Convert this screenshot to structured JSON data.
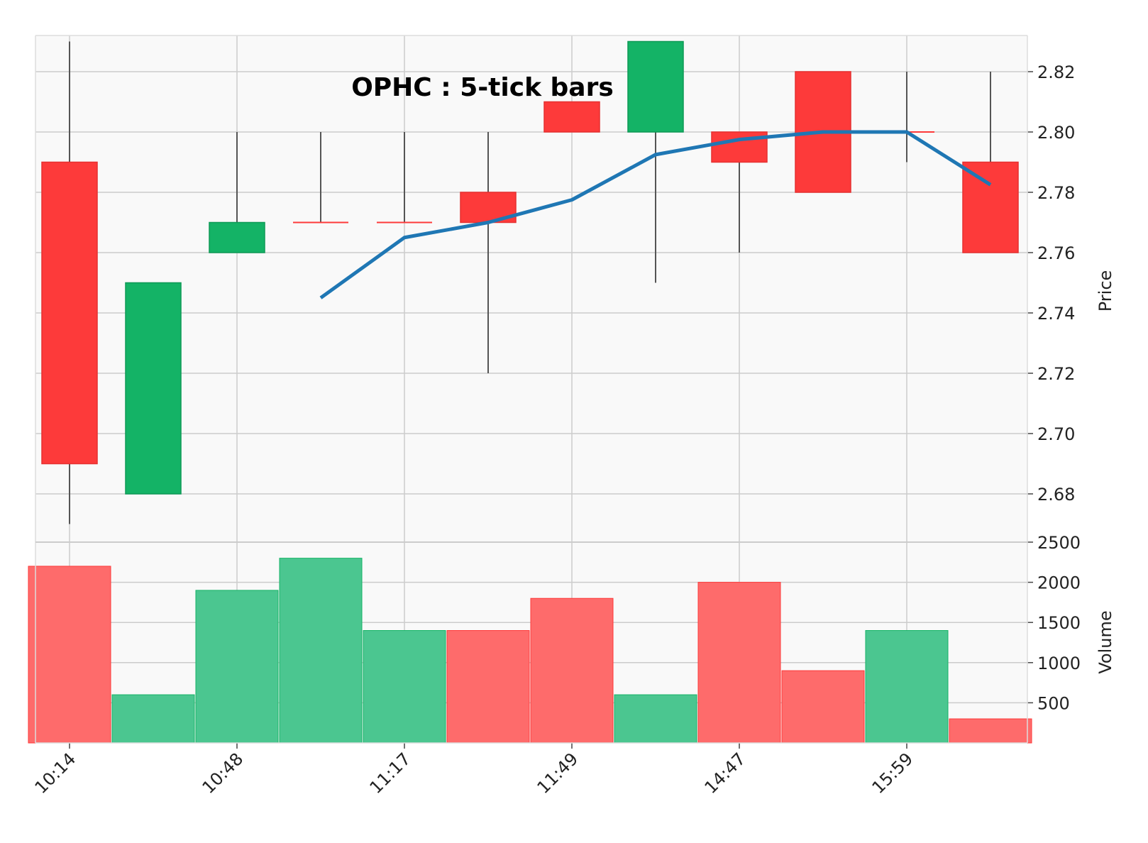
{
  "chart_data": {
    "type": "candlestick",
    "title": "OPHC : 5-tick bars",
    "ylabel": "Price",
    "volume_label": "Volume",
    "x_tick_labels": [
      "10:14",
      "10:48",
      "11:17",
      "11:49",
      "14:47",
      "15:59"
    ],
    "x_tick_bar_index": [
      0,
      2,
      4,
      6,
      8,
      10
    ],
    "price_ylim": [
      2.664,
      2.832
    ],
    "price_ticks": [
      "2.68",
      "2.70",
      "2.72",
      "2.74",
      "2.76",
      "2.78",
      "2.80",
      "2.82"
    ],
    "volume_ylim": [
      0,
      2500
    ],
    "volume_ticks": [
      "500",
      "1000",
      "1500",
      "2000",
      "2500"
    ],
    "grid": true,
    "bars": [
      {
        "open": 2.79,
        "high": 2.83,
        "low": 2.67,
        "close": 2.69,
        "volume": 2200
      },
      {
        "open": 2.68,
        "high": 2.75,
        "low": 2.68,
        "close": 2.75,
        "volume": 600
      },
      {
        "open": 2.76,
        "high": 2.8,
        "low": 2.76,
        "close": 2.77,
        "volume": 1900
      },
      {
        "open": 2.77,
        "high": 2.8,
        "low": 2.77,
        "close": 2.77,
        "volume": 2300
      },
      {
        "open": 2.77,
        "high": 2.8,
        "low": 2.77,
        "close": 2.77,
        "volume": 1400
      },
      {
        "open": 2.78,
        "high": 2.8,
        "low": 2.72,
        "close": 2.77,
        "volume": 1400
      },
      {
        "open": 2.81,
        "high": 2.81,
        "low": 2.8,
        "close": 2.8,
        "volume": 1800
      },
      {
        "open": 2.8,
        "high": 2.83,
        "low": 2.75,
        "close": 2.83,
        "volume": 600
      },
      {
        "open": 2.8,
        "high": 2.8,
        "low": 2.76,
        "close": 2.79,
        "volume": 2000
      },
      {
        "open": 2.82,
        "high": 2.82,
        "low": 2.78,
        "close": 2.78,
        "volume": 900
      },
      {
        "open": 2.8,
        "high": 2.82,
        "low": 2.79,
        "close": 2.8,
        "volume": 1400
      },
      {
        "open": 2.79,
        "high": 2.82,
        "low": 2.76,
        "close": 2.76,
        "volume": 300
      }
    ],
    "moving_average": {
      "start_index": 3,
      "values": [
        2.745,
        2.765,
        2.77,
        2.7775,
        2.7925,
        2.7975,
        2.8,
        2.8,
        2.7825
      ]
    },
    "colors": {
      "up": "#14b366",
      "down": "#fd3a3a",
      "up_volume": "#4bc690",
      "down_volume": "#fe6b6b",
      "moving_average": "#1f77b4",
      "wick": "#555555",
      "panel_bg": "#f9f9f9",
      "grid": "#cccccc"
    }
  }
}
